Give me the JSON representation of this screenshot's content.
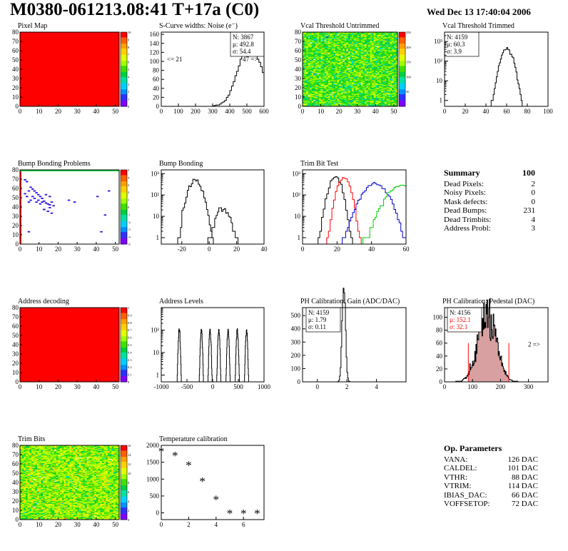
{
  "header": {
    "title": "M0380-061213.08:41 T+17a (C0)",
    "date": "Wed Dec 13 17:40:04 2006"
  },
  "colors": {
    "red": "#ff0000",
    "green": "#00cc00",
    "blue": "#0000cc",
    "black": "#000000",
    "pedestal_fill": "#d8a0a0"
  },
  "chart_data": [
    {
      "id": "pixel-map",
      "type": "heatmap",
      "title": "Pixel Map",
      "xlim": [
        0,
        52
      ],
      "ylim": [
        0,
        80
      ],
      "xticks": [
        0,
        10,
        20,
        30,
        40,
        50
      ],
      "yticks": [
        0,
        10,
        20,
        30,
        40,
        50,
        60,
        70,
        80
      ],
      "value_uniform": 10,
      "zlim": [
        0,
        10
      ],
      "zticks": [
        0,
        1,
        2,
        3,
        4,
        5,
        6,
        7,
        8,
        9,
        10
      ]
    },
    {
      "id": "scurve",
      "type": "histogram",
      "title": "S-Curve widths: Noise (e⁻)",
      "xlim": [
        0,
        600
      ],
      "ylim": [
        0,
        165
      ],
      "xticks": [
        0,
        100,
        200,
        300,
        400,
        500,
        600
      ],
      "yticks": [
        0,
        20,
        40,
        60,
        80,
        100,
        120,
        140,
        160
      ],
      "stats": {
        "N": "3867",
        "mu": "492.8",
        "sigma": "54.4"
      },
      "underflow_label": "<= 21",
      "overflow_label": "47 =>",
      "bin_width": 10,
      "bins_x": [
        300,
        310,
        320,
        330,
        340,
        350,
        360,
        370,
        380,
        390,
        400,
        410,
        420,
        430,
        440,
        450,
        460,
        470,
        480,
        490,
        500,
        510,
        520,
        530,
        540,
        550,
        560,
        570,
        580,
        590
      ],
      "bins_y": [
        1,
        2,
        3,
        3,
        5,
        8,
        10,
        13,
        20,
        25,
        35,
        45,
        55,
        68,
        78,
        90,
        105,
        112,
        128,
        138,
        145,
        150,
        155,
        142,
        135,
        115,
        105,
        98,
        88,
        75
      ]
    },
    {
      "id": "vcal-untrimmed",
      "type": "heatmap",
      "title": "Vcal Threshold Untrimmed",
      "xlim": [
        0,
        52
      ],
      "ylim": [
        0,
        80
      ],
      "xticks": [
        0,
        10,
        20,
        30,
        40,
        50
      ],
      "yticks": [
        0,
        10,
        20,
        30,
        40,
        50,
        60,
        70,
        80
      ],
      "zlim": [
        0,
        250
      ],
      "zticks": [
        50,
        100,
        150,
        200,
        250
      ],
      "mean": 125
    },
    {
      "id": "vcal-trimmed",
      "type": "histogram",
      "title": "Vcal Threshold Trimmed",
      "log_y": true,
      "xlim": [
        0,
        100
      ],
      "ylim": [
        0.5,
        3000
      ],
      "xticks": [
        0,
        20,
        40,
        60,
        80,
        100
      ],
      "ytick_labels": [
        "1",
        "10",
        "10²",
        "10³"
      ],
      "stats": {
        "N": "4159",
        "mu": "60.3",
        "sigma": "3.9"
      },
      "mean": 60.3,
      "sigma": 3.9,
      "entries": 4159
    },
    {
      "id": "bump-problems",
      "type": "heatmap",
      "title": "Bump Bonding Problems",
      "xlim": [
        0,
        52
      ],
      "ylim": [
        0,
        80
      ],
      "xticks": [
        0,
        10,
        20,
        30,
        40,
        50
      ],
      "yticks": [
        0,
        10,
        20,
        30,
        40,
        50,
        60,
        70,
        80
      ],
      "zlim": [
        -5,
        5
      ],
      "zticks": [
        -5,
        -4,
        -3,
        -2,
        -1,
        0,
        1,
        2,
        3,
        4,
        5
      ],
      "problem_pixels": [
        [
          2,
          70
        ],
        [
          3,
          68
        ],
        [
          5,
          62
        ],
        [
          6,
          60
        ],
        [
          7,
          58
        ],
        [
          8,
          56
        ],
        [
          9,
          54
        ],
        [
          10,
          52
        ],
        [
          11,
          50
        ],
        [
          12,
          47
        ],
        [
          13,
          45
        ],
        [
          14,
          44
        ],
        [
          15,
          43
        ],
        [
          2,
          55
        ],
        [
          3,
          52
        ],
        [
          4,
          46
        ],
        [
          6,
          52
        ],
        [
          8,
          46
        ],
        [
          10,
          44
        ],
        [
          12,
          38
        ],
        [
          14,
          36
        ],
        [
          16,
          34
        ],
        [
          5,
          48
        ],
        [
          7,
          50
        ],
        [
          9,
          48
        ],
        [
          11,
          46
        ],
        [
          13,
          54
        ],
        [
          15,
          52
        ],
        [
          25,
          48
        ],
        [
          28,
          46
        ],
        [
          40,
          52
        ],
        [
          44,
          32
        ],
        [
          46,
          58
        ],
        [
          42,
          14
        ],
        [
          4,
          14
        ],
        [
          12,
          38
        ],
        [
          15,
          40
        ],
        [
          17,
          42
        ],
        [
          16,
          46
        ],
        [
          4,
          58
        ]
      ]
    },
    {
      "id": "bump-bonding",
      "type": "histogram",
      "title": "Bump Bonding",
      "log_y": true,
      "xlim": [
        -35,
        40
      ],
      "ylim": [
        0.5,
        1500
      ],
      "xticks": [
        -20,
        0,
        20,
        40
      ],
      "ytick_labels": [
        "1",
        "10",
        "10²",
        "10³"
      ],
      "peaks": [
        {
          "mean": -10,
          "sigma": 3.5,
          "entries": 3900
        },
        {
          "mean": 10,
          "sigma": 3.5,
          "entries": 231
        }
      ]
    },
    {
      "id": "trim-bit",
      "type": "histogram",
      "title": "Trim Bit Test",
      "log_y": true,
      "xlim": [
        0,
        60
      ],
      "ylim": [
        0.5,
        1500
      ],
      "xticks": [
        0,
        20,
        40,
        60
      ],
      "ytick_labels": [
        "1",
        "10",
        "10²",
        "10³"
      ],
      "series": [
        {
          "color": "black",
          "mean": 19,
          "sigma": 2.5,
          "entries": 4156
        },
        {
          "color": "red",
          "mean": 24,
          "sigma": 2.5,
          "entries": 4156
        },
        {
          "color": "blue",
          "mean": 42,
          "sigma": 5.0,
          "entries": 4156
        },
        {
          "color": "green",
          "mean": 58,
          "sigma": 6.0,
          "entries": 4156
        }
      ]
    },
    {
      "id": "address-decoding",
      "type": "heatmap",
      "title": "Address decoding",
      "xlim": [
        0,
        52
      ],
      "ylim": [
        0,
        80
      ],
      "xticks": [
        0,
        10,
        20,
        30,
        40,
        50
      ],
      "yticks": [
        0,
        10,
        20,
        30,
        40,
        50,
        60,
        70,
        80
      ],
      "value_uniform": 1,
      "zlim": [
        0,
        1
      ],
      "zticks": [
        0,
        0.1,
        0.2,
        0.3,
        0.4,
        0.5,
        0.6,
        0.7,
        0.8,
        0.9,
        1
      ]
    },
    {
      "id": "address-levels",
      "type": "histogram",
      "title": "Address Levels",
      "log_y": true,
      "xlim": [
        -1000,
        1000
      ],
      "ylim": [
        0.5,
        1000
      ],
      "xticks": [
        -1000,
        -500,
        0,
        500,
        1000
      ],
      "ytick_labels": [
        "1",
        "10",
        "10²"
      ],
      "peak_positions": [
        -650,
        -220,
        -50,
        120,
        300,
        480,
        660
      ],
      "peak_sigma": 12,
      "peak_entries": 600
    },
    {
      "id": "ph-gain",
      "type": "histogram",
      "title": "PH Calibration: Gain (ADC/DAC)",
      "xlim": [
        -1,
        6
      ],
      "ylim": [
        0,
        560
      ],
      "xticks": [
        0,
        2,
        4
      ],
      "yticks": [
        0,
        100,
        200,
        300,
        400,
        500
      ],
      "stats": {
        "N": "4159",
        "mu": "1.79",
        "sigma": "0.11"
      },
      "mean": 1.79,
      "sigma": 0.11,
      "entries": 4159
    },
    {
      "id": "ph-pedestal",
      "type": "histogram",
      "title": "PH Calibration: Pedestal (DAC)",
      "xlim": [
        0,
        370
      ],
      "ylim": [
        0,
        115
      ],
      "xticks": [
        0,
        100,
        200,
        300
      ],
      "yticks": [
        0,
        20,
        40,
        60,
        80,
        100
      ],
      "stats": {
        "N": "4156",
        "mu": "152.1",
        "sigma": "32.1"
      },
      "overflow_label": "2 =>",
      "mean": 152.1,
      "sigma": 32.1,
      "entries": 4156,
      "cut_lines": [
        85,
        230
      ]
    },
    {
      "id": "trim-bits",
      "type": "heatmap",
      "title": "Trim Bits",
      "xlim": [
        0,
        52
      ],
      "ylim": [
        0,
        80
      ],
      "xticks": [
        0,
        10,
        20,
        30,
        40,
        50
      ],
      "yticks": [
        0,
        10,
        20,
        30,
        40,
        50,
        60,
        70,
        80
      ],
      "zlim": [
        0,
        16
      ],
      "zticks": [
        0,
        2,
        4,
        6,
        8,
        10,
        12,
        14,
        16
      ],
      "mean": 9
    },
    {
      "id": "temperature",
      "type": "scatter",
      "title": "Temperature calibration",
      "xlim": [
        0,
        7.5
      ],
      "ylim": [
        -200,
        2000
      ],
      "xticks": [
        0,
        2,
        4,
        6
      ],
      "yticks": [
        0,
        500,
        1000,
        1500,
        2000
      ],
      "x": [
        0,
        1,
        2,
        3,
        4,
        5,
        6,
        7
      ],
      "y": [
        1830,
        1700,
        1420,
        940,
        400,
        -5,
        -5,
        -5
      ]
    }
  ],
  "summary": {
    "title": "Summary",
    "total": "100",
    "rows": [
      {
        "label": "Dead Pixels:",
        "value": "2"
      },
      {
        "label": "Noisy Pixels:",
        "value": "0"
      },
      {
        "label": "Mask defects:",
        "value": "0"
      },
      {
        "label": "Dead Bumps:",
        "value": "231"
      },
      {
        "label": "Dead Trimbits:",
        "value": "4"
      },
      {
        "label": "Address Probl:",
        "value": "3"
      }
    ]
  },
  "op_params": {
    "title": "Op. Parameters",
    "rows": [
      {
        "label": "VANA:",
        "value": "126 DAC"
      },
      {
        "label": "CALDEL:",
        "value": "101 DAC"
      },
      {
        "label": "VTHR:",
        "value": "88 DAC"
      },
      {
        "label": "VTRIM:",
        "value": "114 DAC"
      },
      {
        "label": "IBIAS_DAC:",
        "value": "66 DAC"
      },
      {
        "label": "VOFFSETOP:",
        "value": "72 DAC"
      }
    ]
  }
}
